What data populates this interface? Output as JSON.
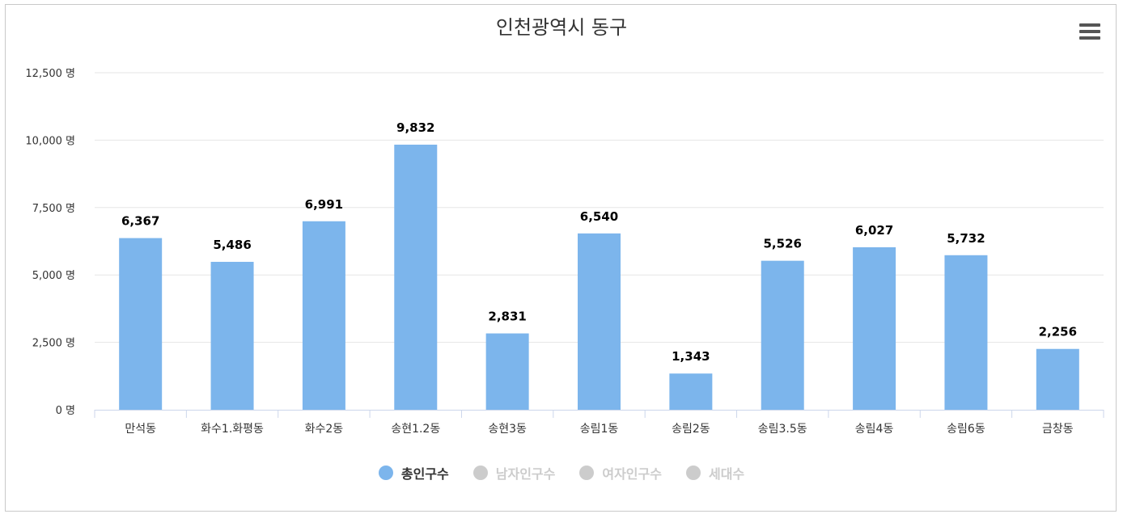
{
  "chart_data": {
    "type": "bar",
    "title": "인천광역시 동구",
    "categories": [
      "만석동",
      "화수1.화평동",
      "화수2동",
      "송현1.2동",
      "송현3동",
      "송림1동",
      "송림2동",
      "송림3.5동",
      "송림4동",
      "송림6동",
      "금창동"
    ],
    "series": [
      {
        "name": "총인구수",
        "values": [
          6367,
          5486,
          6991,
          9832,
          2831,
          6540,
          1343,
          5526,
          6027,
          5732,
          2256
        ],
        "color": "#7cb5ec",
        "visible": true
      }
    ],
    "data_labels": [
      "6,367",
      "5,486",
      "6,991",
      "9,832",
      "2,831",
      "6,540",
      "1,343",
      "5,526",
      "6,027",
      "5,732",
      "2,256"
    ],
    "ylim": [
      0,
      12500
    ],
    "yticks": [
      0,
      2500,
      5000,
      7500,
      10000,
      12500
    ],
    "ytick_labels": [
      "0 명",
      "2,500 명",
      "5,000 명",
      "7,500 명",
      "10,000 명",
      "12,500 명"
    ],
    "grid": true,
    "legend_position": "bottom-center",
    "xlabel": "",
    "ylabel": ""
  },
  "legend": [
    {
      "label": "총인구수",
      "color": "#7cb5ec",
      "active": true
    },
    {
      "label": "남자인구수",
      "color": "#cccccc",
      "active": false
    },
    {
      "label": "여자인구수",
      "color": "#cccccc",
      "active": false
    },
    {
      "label": "세대수",
      "color": "#cccccc",
      "active": false
    }
  ],
  "colors": {
    "bar": "#7cb5ec",
    "grid": "#e6e6e6",
    "axis_text": "#333333",
    "legend_active_text": "#333333",
    "legend_inactive_text": "#cccccc",
    "menu_icon": "#555555"
  },
  "icons": {
    "menu": "hamburger-menu-icon"
  }
}
